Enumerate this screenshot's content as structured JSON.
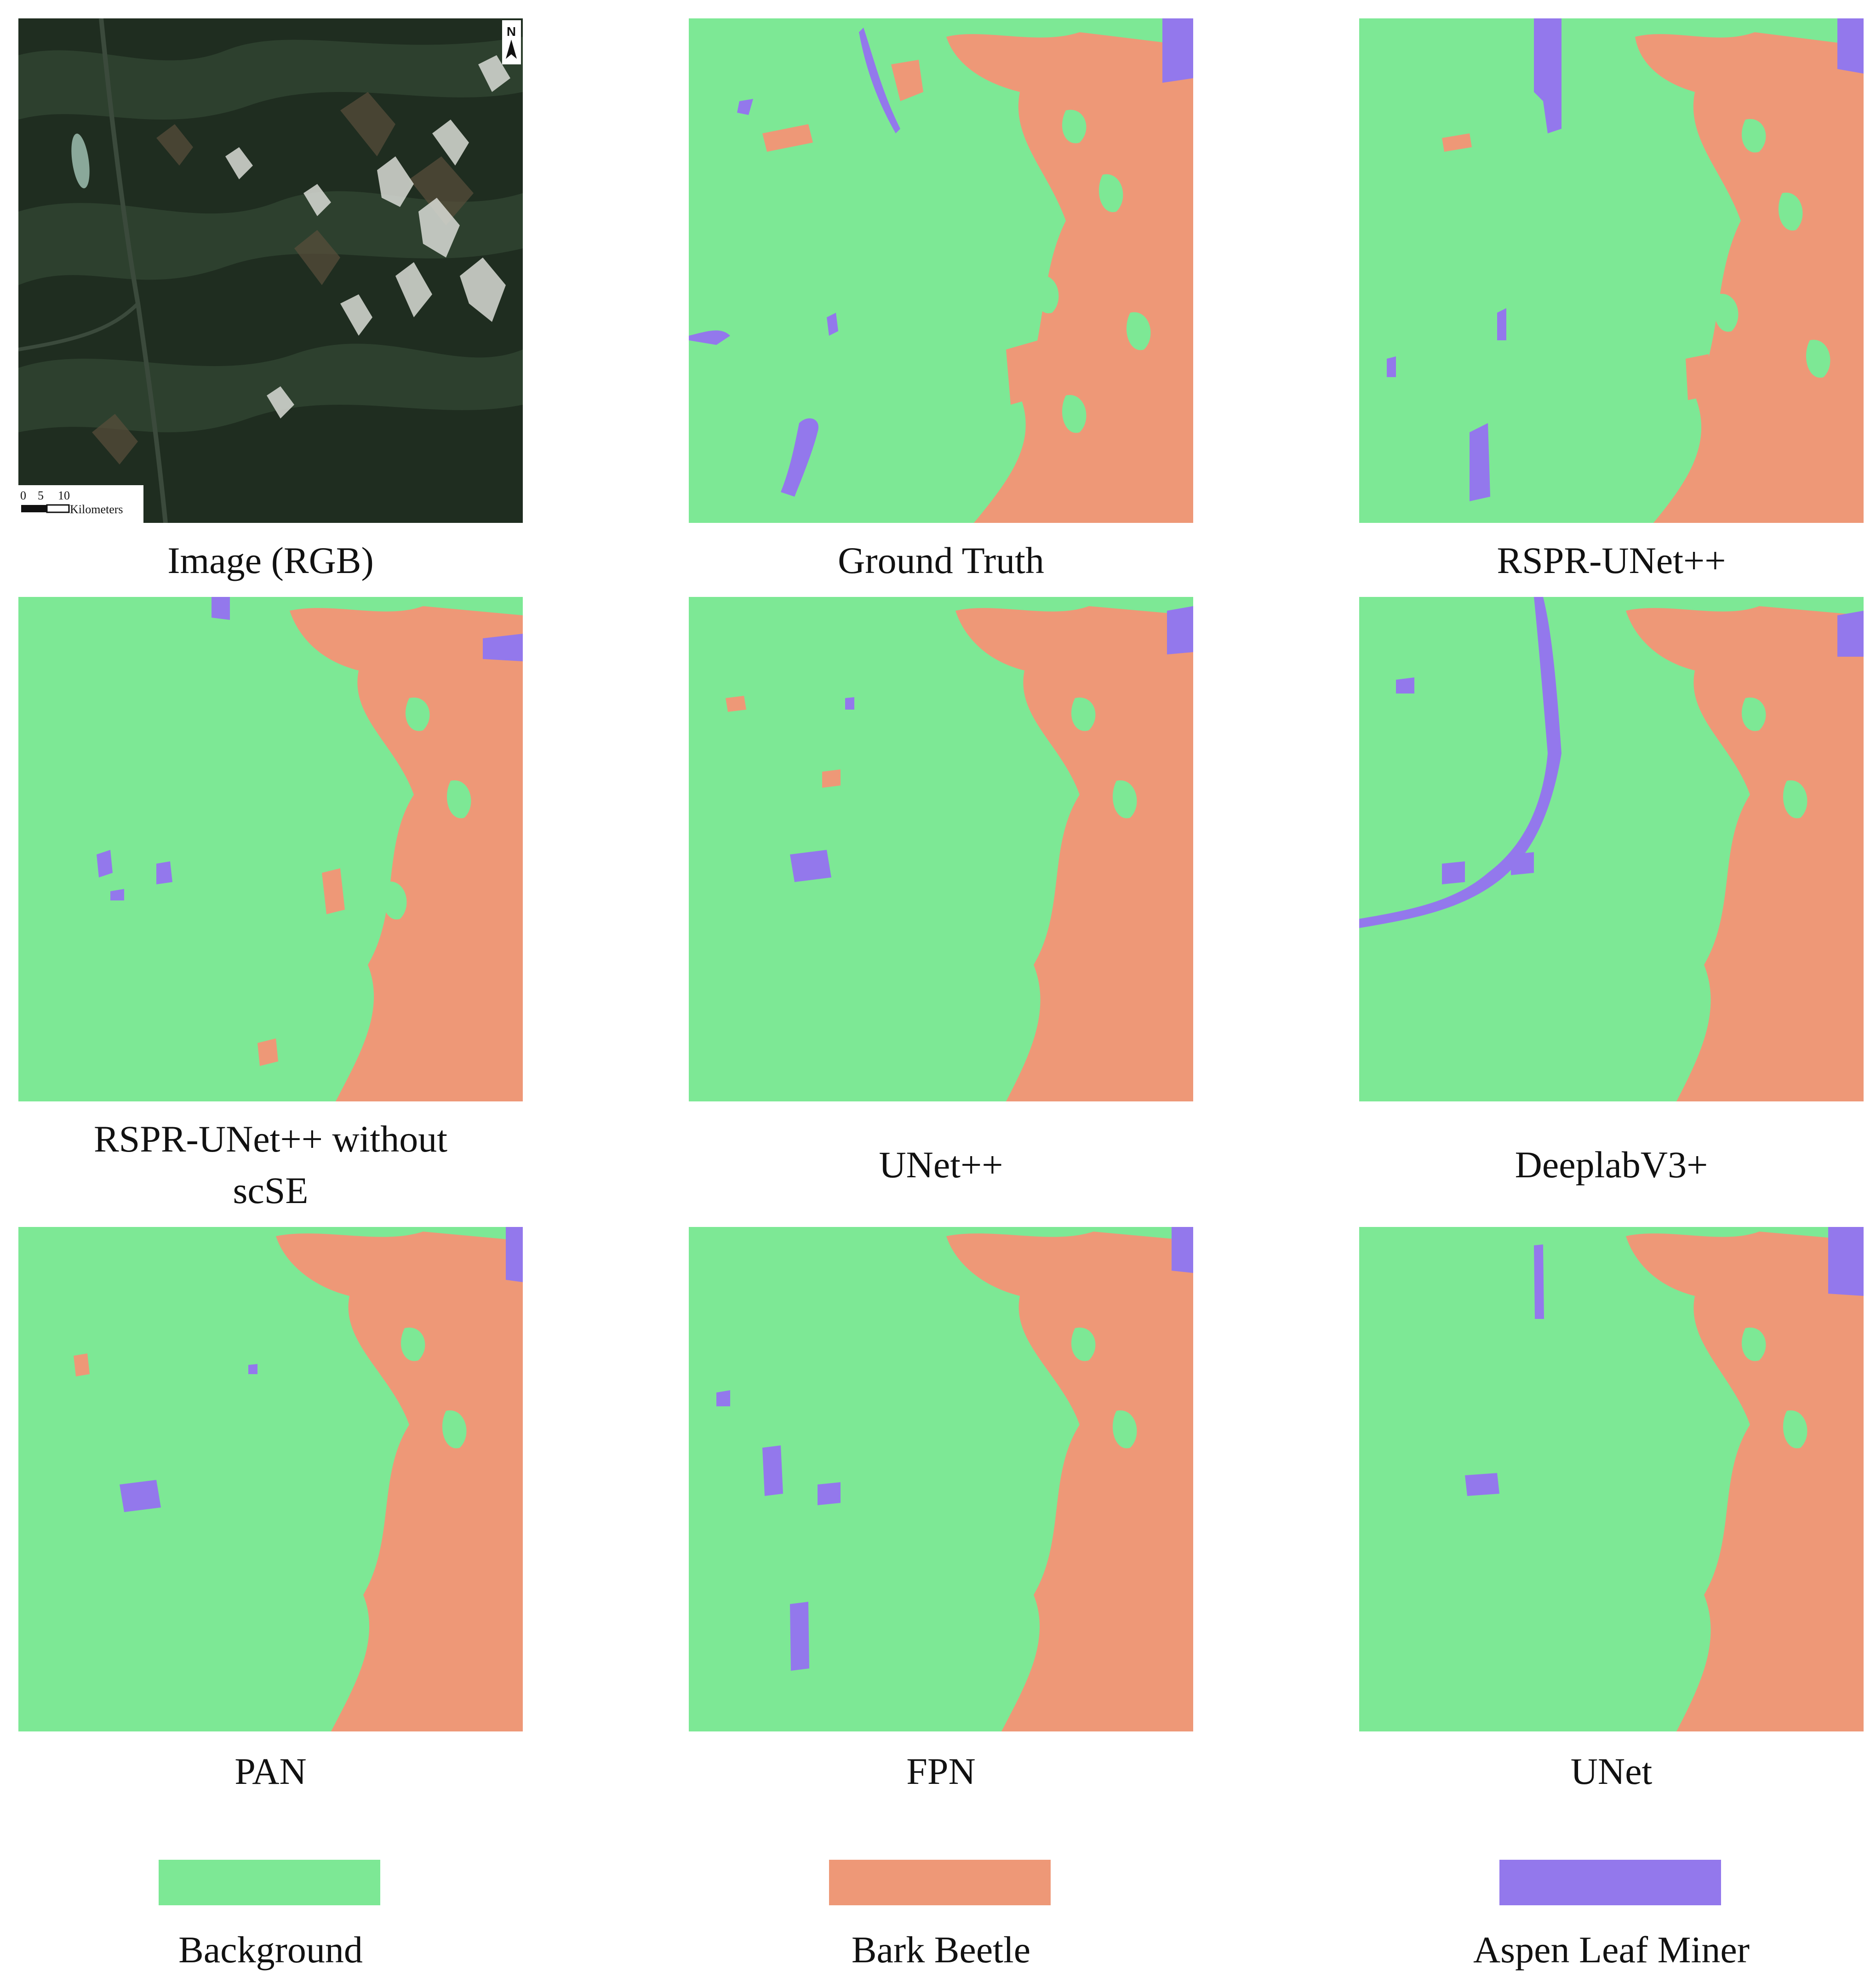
{
  "colors": {
    "background_class": "#7de895",
    "bark_beetle": "#ee9877",
    "aspen_leaf_miner": "#9378ec",
    "satellite_dark": "#1e2b1f",
    "snow": "#d9dcd6"
  },
  "rgb_panel": {
    "north_arrow": "N",
    "scale_ticks": [
      "0",
      "5",
      "10"
    ],
    "scale_unit": "Kilometers"
  },
  "captions": {
    "rgb": "Image (RGB)",
    "ground_truth": "Ground Truth",
    "rspr_unetpp": "RSPR-UNet++",
    "rspr_no_scse_line1": "RSPR-UNet++ without",
    "rspr_no_scse_line2": "scSE",
    "unetpp": "UNet++",
    "deeplab": "DeeplabV3+",
    "pan": "PAN",
    "fpn": "FPN",
    "unet": "UNet"
  },
  "legend": [
    {
      "label": "Background",
      "color": "#7de895"
    },
    {
      "label": "Bark Beetle",
      "color": "#ee9877"
    },
    {
      "label": "Aspen Leaf Miner",
      "color": "#9378ec"
    }
  ]
}
